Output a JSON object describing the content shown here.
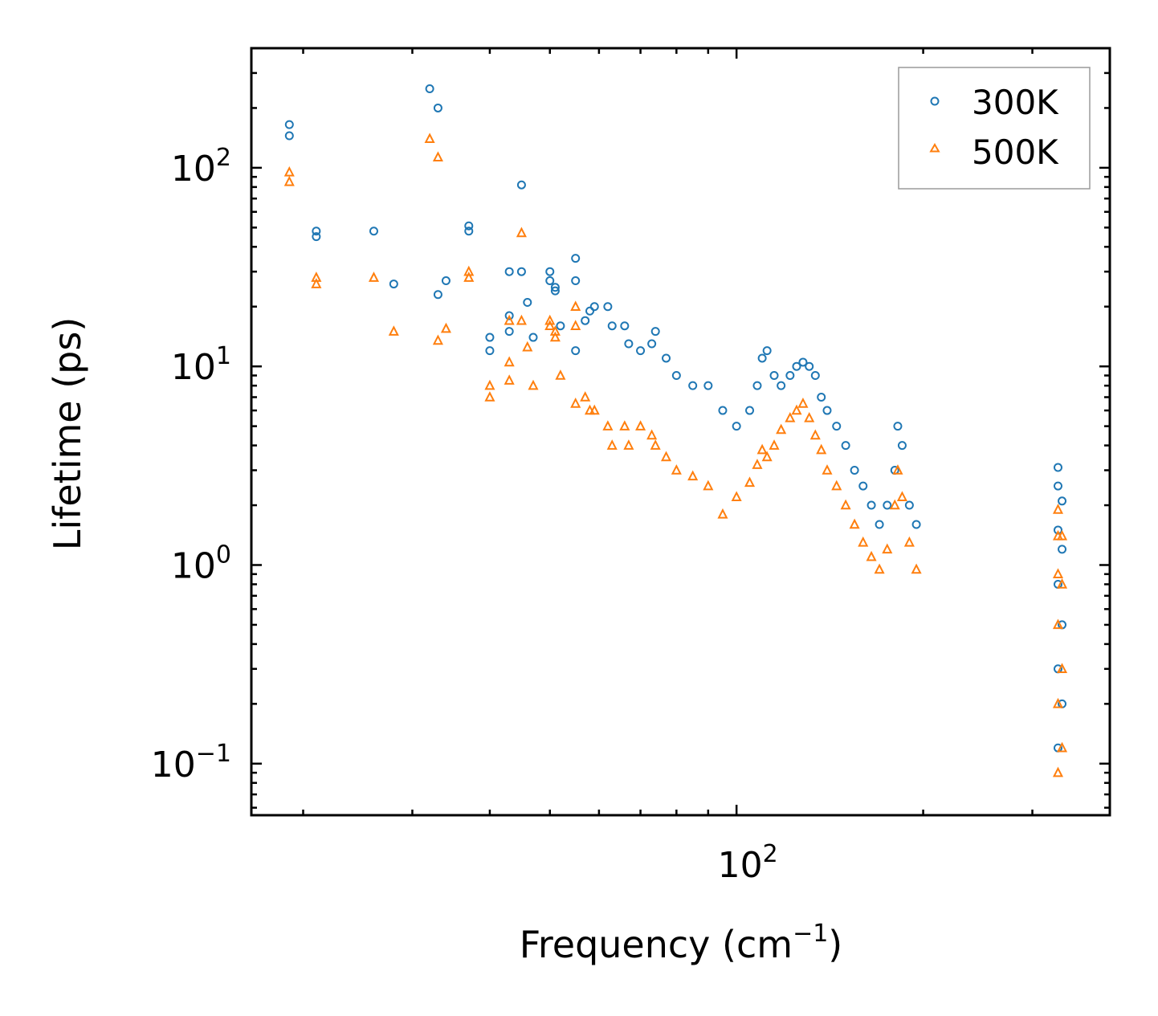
{
  "chart_data": {
    "type": "scatter",
    "title": "",
    "xlabel": "Frequency (cm",
    "xlabel_sup": "−1",
    "xlabel_end": ")",
    "ylabel": "Lifetime (ps)",
    "xscale": "log",
    "yscale": "log",
    "xlim": [
      16.5,
      400
    ],
    "ylim": [
      0.055,
      400
    ],
    "x_ticks": [
      {
        "value": 100,
        "base": "10",
        "exp": "2"
      }
    ],
    "y_ticks": [
      {
        "value": 0.1,
        "base": "10",
        "exp": "−1"
      },
      {
        "value": 1,
        "base": "10",
        "exp": "0"
      },
      {
        "value": 10,
        "base": "10",
        "exp": "1"
      },
      {
        "value": 100,
        "base": "10",
        "exp": "2"
      }
    ],
    "legend_position": "top-right",
    "series": [
      {
        "name": "300K",
        "marker": "circle",
        "color": "#1f77b4",
        "points": [
          [
            19,
            165
          ],
          [
            19,
            145
          ],
          [
            21,
            48
          ],
          [
            21,
            45
          ],
          [
            26,
            48
          ],
          [
            28,
            26
          ],
          [
            32,
            250
          ],
          [
            33,
            200
          ],
          [
            33,
            23
          ],
          [
            34,
            27
          ],
          [
            37,
            51
          ],
          [
            37,
            48
          ],
          [
            40,
            14
          ],
          [
            40,
            12
          ],
          [
            43,
            30
          ],
          [
            43,
            18
          ],
          [
            43,
            15
          ],
          [
            45,
            82
          ],
          [
            45,
            30
          ],
          [
            46,
            21
          ],
          [
            47,
            14
          ],
          [
            50,
            27
          ],
          [
            50,
            30
          ],
          [
            51,
            25
          ],
          [
            51,
            24
          ],
          [
            52,
            16
          ],
          [
            55,
            35
          ],
          [
            55,
            27
          ],
          [
            55,
            12
          ],
          [
            57,
            17
          ],
          [
            58,
            19
          ],
          [
            59,
            20
          ],
          [
            62,
            20
          ],
          [
            63,
            16
          ],
          [
            66,
            16
          ],
          [
            67,
            13
          ],
          [
            70,
            12
          ],
          [
            73,
            13
          ],
          [
            74,
            15
          ],
          [
            77,
            11
          ],
          [
            80,
            9
          ],
          [
            85,
            8
          ],
          [
            90,
            8
          ],
          [
            95,
            6
          ],
          [
            100,
            5
          ],
          [
            105,
            6
          ],
          [
            108,
            8
          ],
          [
            110,
            11
          ],
          [
            112,
            12
          ],
          [
            115,
            9
          ],
          [
            118,
            8
          ],
          [
            122,
            9
          ],
          [
            125,
            10
          ],
          [
            128,
            10.5
          ],
          [
            131,
            10
          ],
          [
            134,
            9
          ],
          [
            137,
            7
          ],
          [
            140,
            6
          ],
          [
            145,
            5
          ],
          [
            150,
            4
          ],
          [
            155,
            3
          ],
          [
            160,
            2.5
          ],
          [
            165,
            2
          ],
          [
            170,
            1.6
          ],
          [
            175,
            2
          ],
          [
            180,
            3
          ],
          [
            182,
            5
          ],
          [
            185,
            4
          ],
          [
            190,
            2
          ],
          [
            195,
            1.6
          ],
          [
            330,
            3.1
          ],
          [
            330,
            2.5
          ],
          [
            330,
            1.5
          ],
          [
            330,
            0.8
          ],
          [
            330,
            0.3
          ],
          [
            330,
            0.12
          ],
          [
            335,
            2.1
          ],
          [
            335,
            1.2
          ],
          [
            335,
            0.5
          ],
          [
            335,
            0.2
          ]
        ]
      },
      {
        "name": "500K",
        "marker": "triangle",
        "color": "#ff7f0e",
        "points": [
          [
            19,
            95
          ],
          [
            19,
            85
          ],
          [
            21,
            28
          ],
          [
            21,
            26
          ],
          [
            26,
            28
          ],
          [
            28,
            15
          ],
          [
            32,
            140
          ],
          [
            33,
            113
          ],
          [
            33,
            13.5
          ],
          [
            34,
            15.5
          ],
          [
            37,
            30
          ],
          [
            37,
            28
          ],
          [
            40,
            8
          ],
          [
            40,
            7
          ],
          [
            43,
            10.5
          ],
          [
            43,
            8.5
          ],
          [
            43,
            17
          ],
          [
            45,
            47
          ],
          [
            45,
            17
          ],
          [
            46,
            12.5
          ],
          [
            47,
            8
          ],
          [
            50,
            16
          ],
          [
            50,
            17
          ],
          [
            51,
            15
          ],
          [
            51,
            14
          ],
          [
            52,
            9
          ],
          [
            55,
            20
          ],
          [
            55,
            16
          ],
          [
            55,
            6.5
          ],
          [
            57,
            7
          ],
          [
            58,
            6
          ],
          [
            59,
            6
          ],
          [
            62,
            5
          ],
          [
            63,
            4
          ],
          [
            66,
            5
          ],
          [
            67,
            4
          ],
          [
            70,
            5
          ],
          [
            73,
            4.5
          ],
          [
            74,
            4
          ],
          [
            77,
            3.5
          ],
          [
            80,
            3
          ],
          [
            85,
            2.8
          ],
          [
            90,
            2.5
          ],
          [
            95,
            1.8
          ],
          [
            100,
            2.2
          ],
          [
            105,
            2.6
          ],
          [
            108,
            3.2
          ],
          [
            110,
            3.8
          ],
          [
            112,
            3.5
          ],
          [
            115,
            4
          ],
          [
            118,
            4.8
          ],
          [
            122,
            5.5
          ],
          [
            125,
            6
          ],
          [
            128,
            6.5
          ],
          [
            131,
            5.5
          ],
          [
            134,
            4.5
          ],
          [
            137,
            3.8
          ],
          [
            140,
            3
          ],
          [
            145,
            2.5
          ],
          [
            150,
            2
          ],
          [
            155,
            1.6
          ],
          [
            160,
            1.3
          ],
          [
            165,
            1.1
          ],
          [
            170,
            0.95
          ],
          [
            175,
            1.2
          ],
          [
            180,
            2
          ],
          [
            182,
            3
          ],
          [
            185,
            2.2
          ],
          [
            190,
            1.3
          ],
          [
            195,
            0.95
          ],
          [
            330,
            1.9
          ],
          [
            330,
            1.4
          ],
          [
            330,
            0.9
          ],
          [
            330,
            0.5
          ],
          [
            330,
            0.2
          ],
          [
            330,
            0.09
          ],
          [
            335,
            1.4
          ],
          [
            335,
            0.8
          ],
          [
            335,
            0.3
          ],
          [
            335,
            0.12
          ]
        ]
      }
    ]
  }
}
